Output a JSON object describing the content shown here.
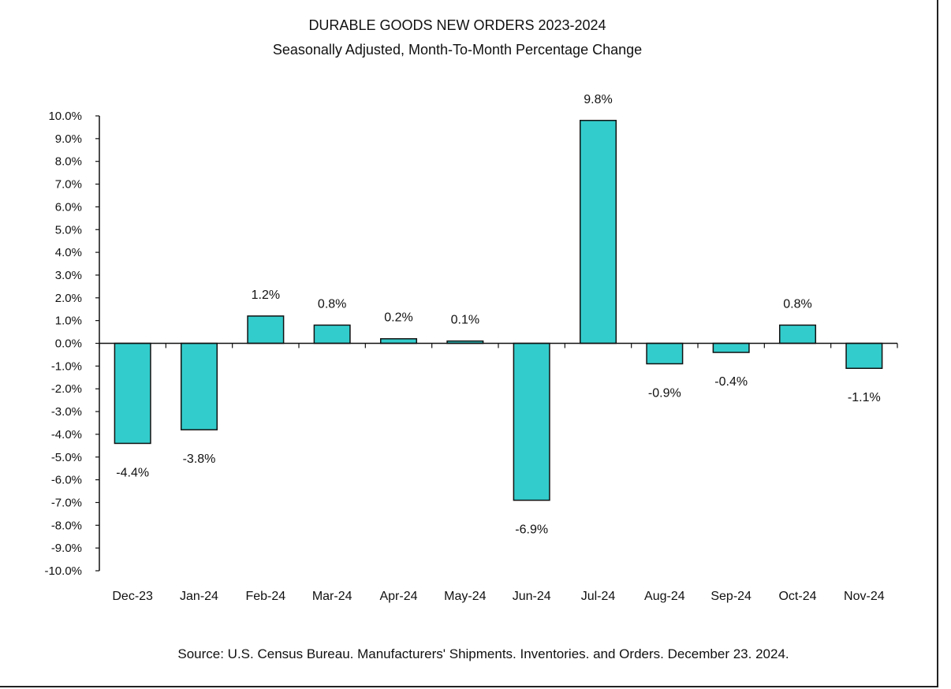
{
  "chart_data": {
    "type": "bar",
    "title": "DURABLE GOODS NEW ORDERS 2023-2024",
    "subtitle": "Seasonally Adjusted,  Month-To-Month Percentage Change",
    "categories": [
      "Dec-23",
      "Jan-24",
      "Feb-24",
      "Mar-24",
      "Apr-24",
      "May-24",
      "Jun-24",
      "Jul-24",
      "Aug-24",
      "Sep-24",
      "Oct-24",
      "Nov-24"
    ],
    "values": [
      -4.4,
      -3.8,
      1.2,
      0.8,
      0.2,
      0.1,
      -6.9,
      9.8,
      -0.9,
      -0.4,
      0.8,
      -1.1
    ],
    "data_labels": [
      "-4.4%",
      "-3.8%",
      "1.2%",
      "0.8%",
      "0.2%",
      "0.1%",
      "-6.9%",
      "9.8%",
      "-0.9%",
      "-0.4%",
      "0.8%",
      "-1.1%"
    ],
    "ylim": [
      -10,
      10
    ],
    "y_ticks": [
      10,
      9,
      8,
      7,
      6,
      5,
      4,
      3,
      2,
      1,
      0,
      -1,
      -2,
      -3,
      -4,
      -5,
      -6,
      -7,
      -8,
      -9,
      -10
    ],
    "y_tick_labels": [
      "10.0%",
      "9.0%",
      "8.0%",
      "7.0%",
      "6.0%",
      "5.0%",
      "4.0%",
      "3.0%",
      "2.0%",
      "1.0%",
      "0.0%",
      "-1.0%",
      "-2.0%",
      "-3.0%",
      "-4.0%",
      "-5.0%",
      "-6.0%",
      "-7.0%",
      "-8.0%",
      "-9.0%",
      "-10.0%"
    ],
    "bar_color": "#33CCCC",
    "grid": false,
    "legend": "none"
  },
  "source": "Source: U.S. Census Bureau. Manufacturers' Shipments. Inventories. and Orders. December 23. 2024."
}
